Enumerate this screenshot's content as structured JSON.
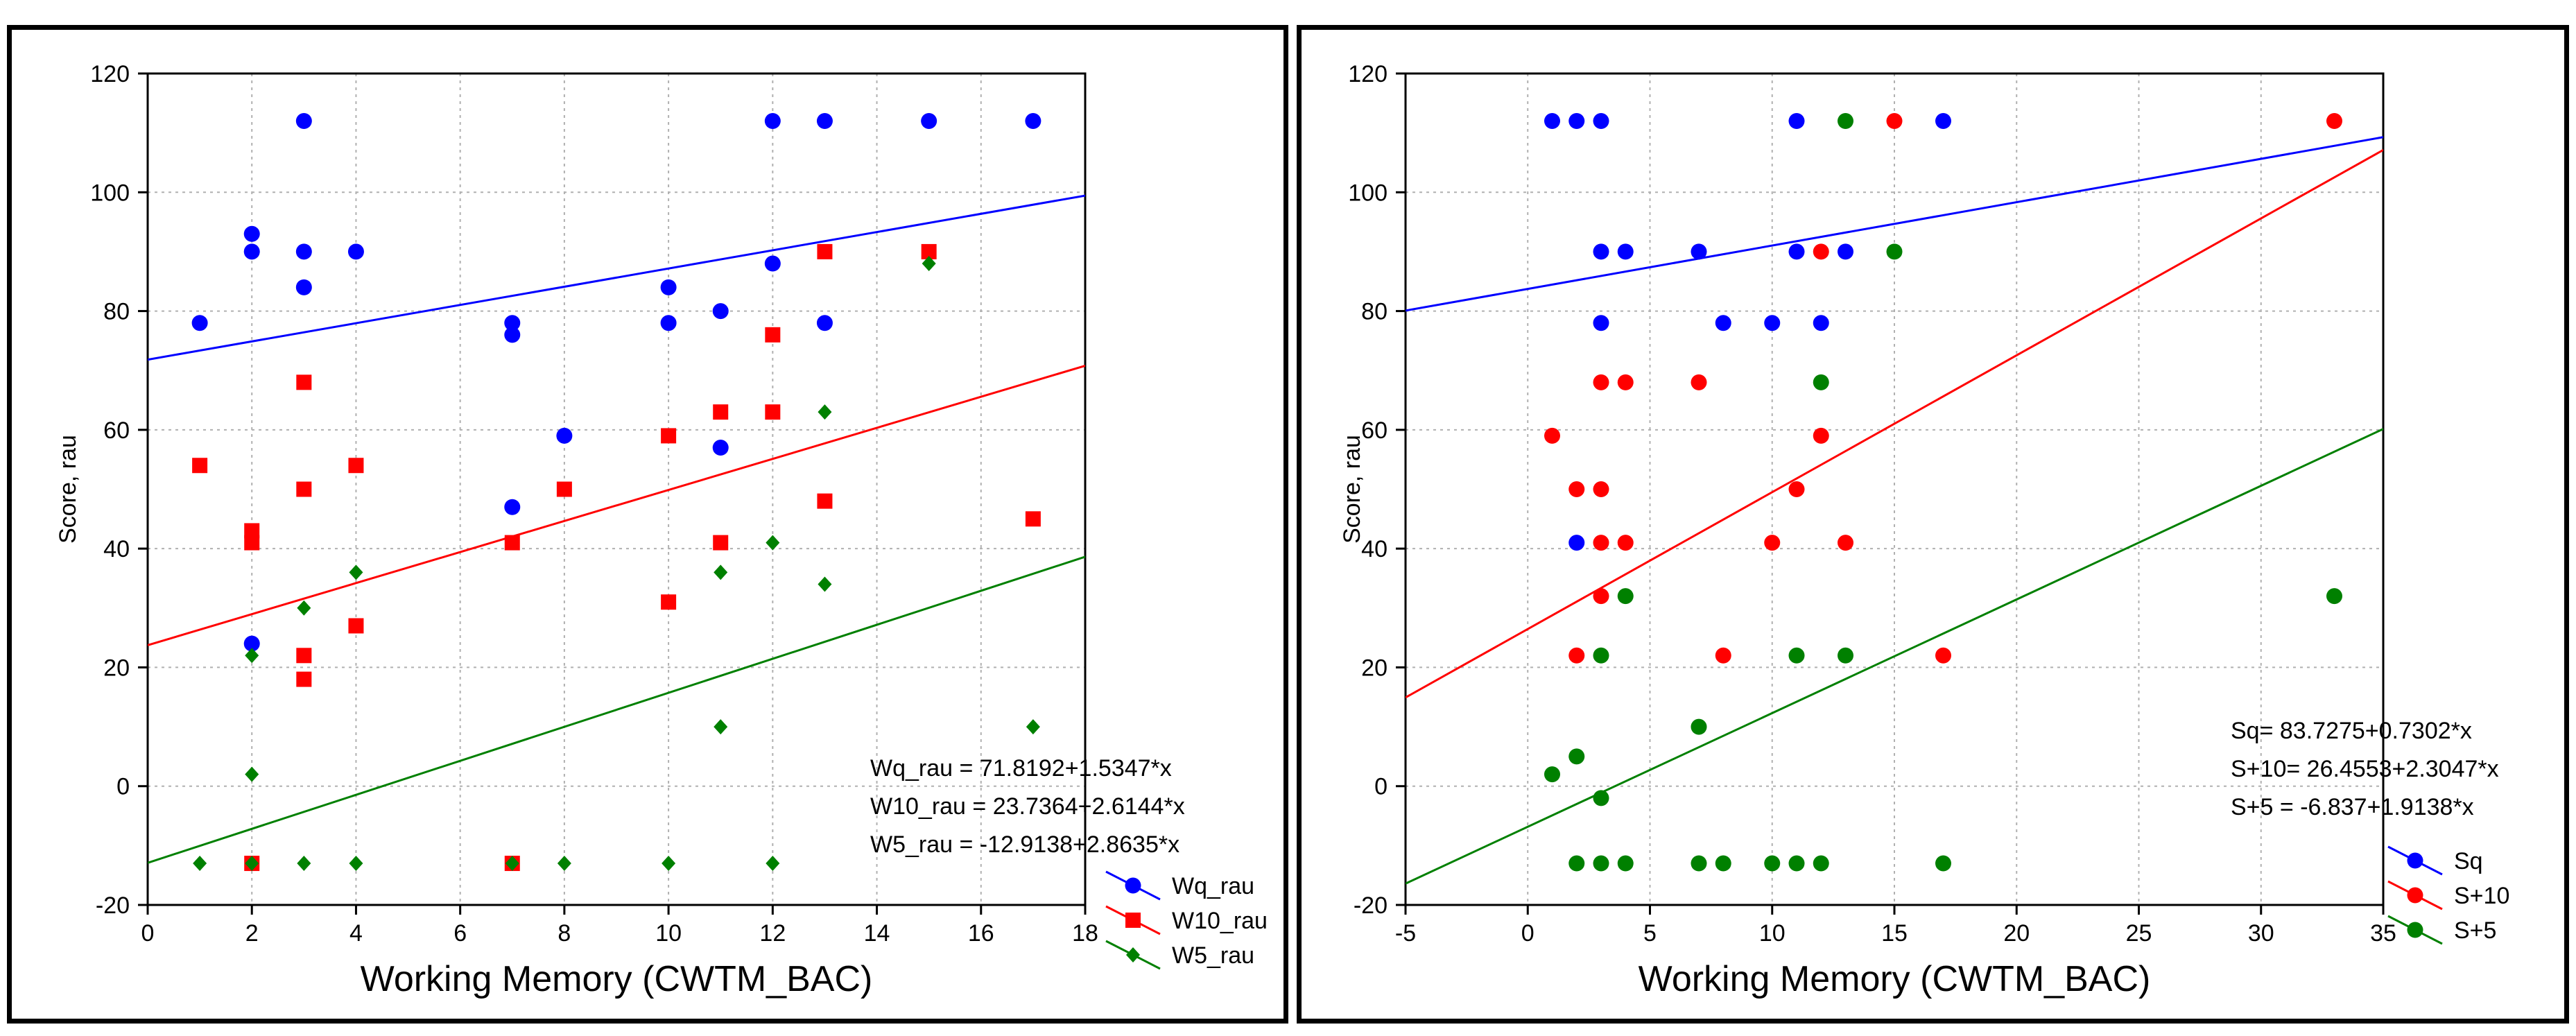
{
  "colors": {
    "Wq_rau": "#0000ff",
    "W10_rau": "#ff0000",
    "W5_rau": "#008000",
    "grid": "#b0b0b0"
  },
  "chart_data": [
    {
      "type": "scatter",
      "xlabel": "Working Memory (CWTM_BAC)",
      "ylabel": "Score, rau",
      "xlim": [
        0,
        18
      ],
      "ylim": [
        -20,
        120
      ],
      "xticks": [
        0,
        2,
        4,
        6,
        8,
        10,
        12,
        14,
        16,
        18
      ],
      "yticks": [
        -20,
        0,
        20,
        40,
        60,
        80,
        100,
        120
      ],
      "grid": true,
      "legend_position": "bottom-right",
      "series": [
        {
          "name": "Wq_rau",
          "color": "#0000ff",
          "marker": "circle",
          "fit": {
            "intercept": 71.8192,
            "slope": 1.5347
          },
          "x": [
            1,
            2,
            2,
            2,
            3,
            3,
            3,
            4,
            7,
            7,
            7,
            8,
            10,
            10,
            11,
            11,
            12,
            12,
            13,
            13,
            15,
            17
          ],
          "y": [
            78,
            93,
            90,
            24,
            112,
            90,
            84,
            90,
            78,
            76,
            47,
            59,
            84,
            78,
            80,
            57,
            112,
            88,
            112,
            78,
            112,
            112
          ]
        },
        {
          "name": "W10_rau",
          "color": "#ff0000",
          "marker": "square",
          "fit": {
            "intercept": 23.7364,
            "slope": 2.6144
          },
          "x": [
            1,
            2,
            2,
            2,
            3,
            3,
            3,
            3,
            4,
            4,
            7,
            7,
            8,
            10,
            10,
            11,
            11,
            12,
            12,
            13,
            13,
            15,
            17
          ],
          "y": [
            54,
            43,
            41,
            -13,
            68,
            50,
            22,
            18,
            54,
            27,
            41,
            -13,
            50,
            59,
            31,
            63,
            41,
            76,
            63,
            90,
            48,
            90,
            45
          ]
        },
        {
          "name": "W5_rau",
          "color": "#008000",
          "marker": "diamond",
          "fit": {
            "intercept": -12.9138,
            "slope": 2.8635
          },
          "x": [
            1,
            2,
            2,
            2,
            3,
            3,
            4,
            4,
            7,
            8,
            10,
            11,
            11,
            12,
            12,
            13,
            13,
            15,
            17
          ],
          "y": [
            -13,
            22,
            2,
            -13,
            30,
            -13,
            36,
            -13,
            -13,
            -13,
            -13,
            36,
            10,
            41,
            -13,
            63,
            34,
            88,
            10
          ]
        }
      ],
      "equations": [
        "Wq_rau = 71.8192+1.5347*x",
        "W10_rau = 23.7364+2.6144*x",
        "W5_rau = -12.9138+2.8635*x"
      ]
    },
    {
      "type": "scatter",
      "xlabel": "Working Memory (CWTM_BAC)",
      "ylabel": "Score, rau",
      "xlim": [
        -5,
        35
      ],
      "ylim": [
        -20,
        120
      ],
      "xticks": [
        -5,
        0,
        5,
        10,
        15,
        20,
        25,
        30,
        35
      ],
      "yticks": [
        -20,
        0,
        20,
        40,
        60,
        80,
        100,
        120
      ],
      "grid": true,
      "legend_position": "bottom-right",
      "series": [
        {
          "name": "Sq",
          "color": "#0000ff",
          "marker": "circle",
          "fit": {
            "intercept": 83.7275,
            "slope": 0.7302
          },
          "x": [
            1,
            2,
            3,
            11,
            17,
            3,
            4,
            7,
            11,
            13,
            3,
            8,
            10,
            12,
            2
          ],
          "y": [
            112,
            112,
            112,
            112,
            112,
            90,
            90,
            90,
            90,
            90,
            78,
            78,
            78,
            78,
            41
          ]
        },
        {
          "name": "S+10",
          "color": "#ff0000",
          "marker": "circle",
          "fit": {
            "intercept": 26.4553,
            "slope": 2.3047
          },
          "x": [
            15,
            33,
            12,
            3,
            4,
            7,
            12,
            1,
            2,
            3,
            11,
            3,
            4,
            10,
            13,
            3,
            2,
            8,
            17
          ],
          "y": [
            112,
            112,
            90,
            68,
            68,
            68,
            59,
            59,
            50,
            50,
            50,
            41,
            41,
            41,
            41,
            32,
            22,
            22,
            22
          ]
        },
        {
          "name": "S+5",
          "color": "#008000",
          "marker": "circle",
          "fit": {
            "intercept": -6.837,
            "slope": 1.9138
          },
          "x": [
            13,
            15,
            12,
            4,
            33,
            3,
            11,
            13,
            7,
            2,
            1,
            3,
            2,
            3,
            4,
            7,
            8,
            10,
            11,
            12,
            17
          ],
          "y": [
            112,
            90,
            68,
            32,
            32,
            22,
            22,
            22,
            10,
            5,
            2,
            -2,
            -13,
            -13,
            -13,
            -13,
            -13,
            -13,
            -13,
            -13,
            -13
          ]
        }
      ],
      "equations": [
        "Sq= 83.7275+0.7302*x",
        "S+10= 26.4553+2.3047*x",
        "S+5 = -6.837+1.9138*x"
      ]
    }
  ]
}
